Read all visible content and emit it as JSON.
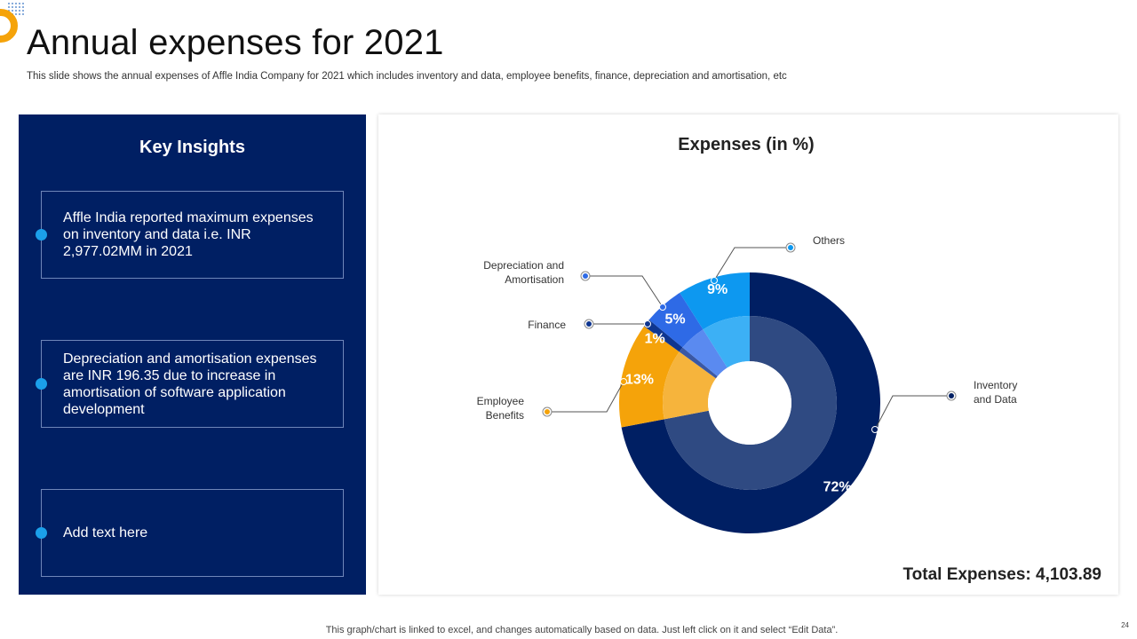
{
  "header": {
    "title": "Annual expenses for 2021",
    "subtitle": "This slide shows the annual expenses of Affle India Company for 2021 which includes inventory and data, employee benefits, finance, depreciation and amortisation, etc"
  },
  "insights": {
    "title": "Key Insights",
    "items": [
      "Affle India reported maximum expenses on inventory and data i.e. INR 2,977.02MM in 2021",
      "Depreciation and amortisation expenses are INR 196.35 due to increase in amortisation of software application development",
      "Add text here"
    ]
  },
  "chart_data": {
    "type": "pie",
    "variant": "donut",
    "title": "Expenses (in %)",
    "categories": [
      "Inventory and Data",
      "Employee Benefits",
      "Finance",
      "Depreciation and Amortisation",
      "Others"
    ],
    "category_lines": [
      [
        "Inventory",
        "and Data"
      ],
      [
        "Employee",
        "Benefits"
      ],
      [
        "Finance"
      ],
      [
        "Depreciation  and",
        "Amortisation"
      ],
      [
        "Others"
      ]
    ],
    "values": [
      72,
      13,
      1,
      5,
      9
    ],
    "value_labels": [
      "72%",
      "13%",
      "1%",
      "5%",
      "9%"
    ],
    "colors": [
      "#001f63",
      "#f5a30a",
      "#0f3690",
      "#2e6ae6",
      "#0d98f0"
    ],
    "inner_colors": [
      "#2f4a82",
      "#f6b43c",
      "#3a58a4",
      "#5a8af0",
      "#3cb0f5"
    ]
  },
  "total": {
    "label": "Total Expenses:",
    "value": "4,103.89"
  },
  "footer": {
    "note": "This graph/chart is linked to excel,  and changes automatically based on data. Just left click on it and select “Edit Data”.",
    "page_number": "24"
  }
}
